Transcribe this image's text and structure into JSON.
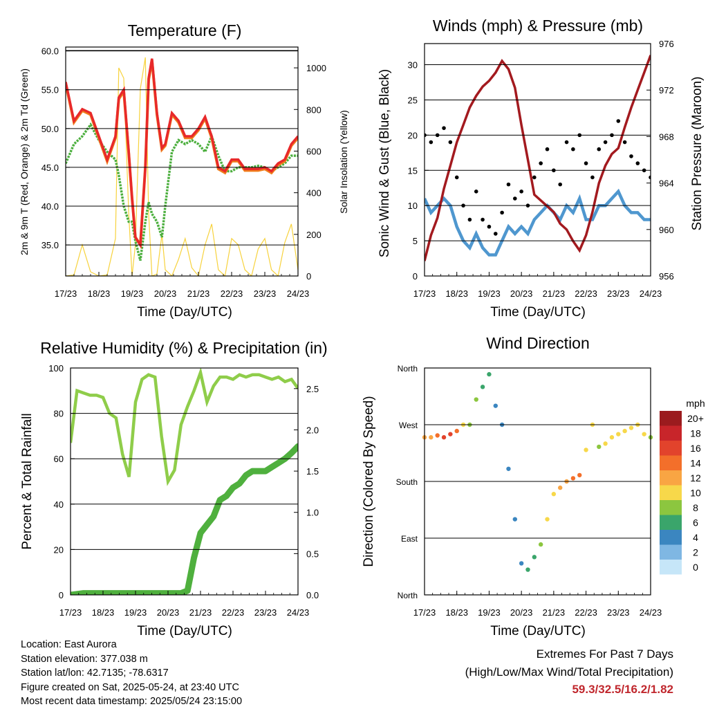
{
  "x_ticks": [
    "17/23",
    "18/23",
    "19/23",
    "20/23",
    "21/23",
    "22/23",
    "23/23",
    "24/23"
  ],
  "colors": {
    "temp_2m": "#e8292a",
    "temp_9m": "#f07d1c",
    "dewpoint": "#4caf3e",
    "solar": "#f7d23c",
    "gust": "#000000",
    "wind": "#4f97cf",
    "pressure": "#a31a1f",
    "rh": "#8fcd4a",
    "precip": "#4fb03e"
  },
  "panels": {
    "temperature": {
      "title": "Temperature (F)",
      "xlabel": "Time (Day/UTC)",
      "ylabel_left": "2m & 9m T (Red, Orange) & 2m Td (Green)",
      "ylabel_right": "Solar Insolation (Yellow)",
      "left_ticks": [
        "35.0",
        "40.0",
        "45.0",
        "50.0",
        "55.0",
        "60.0"
      ],
      "right_ticks": [
        "0",
        "200",
        "400",
        "600",
        "800",
        "1000"
      ]
    },
    "winds": {
      "title": "Winds (mph) & Pressure (mb)",
      "xlabel": "Time (Day/UTC)",
      "ylabel_left": "Sonic Wind & Gust (Blue, Black)",
      "ylabel_right": "Station Pressure (Maroon)",
      "left_ticks": [
        "0",
        "5",
        "10",
        "15",
        "20",
        "25",
        "30"
      ],
      "right_ticks": [
        "956",
        "960",
        "964",
        "968",
        "972",
        "976"
      ]
    },
    "humidity": {
      "title": "Relative Humidity (%) & Precipitation (in)",
      "xlabel": "Time (Day/UTC)",
      "ylabel_left": "Percent & Total Rainfall",
      "left_ticks": [
        "0",
        "20",
        "40",
        "60",
        "80",
        "100"
      ],
      "right_ticks": [
        "0.0",
        "0.5",
        "1.0",
        "1.5",
        "2.0",
        "2.5"
      ]
    },
    "direction": {
      "title": "Wind Direction",
      "xlabel": "Time (Day/UTC)",
      "ylabel_left": "Direction (Colored By Speed)",
      "left_ticks": [
        "North",
        "East",
        "South",
        "West",
        "North"
      ],
      "legend_title": "mph",
      "legend_labels": [
        "20+",
        "18",
        "16",
        "14",
        "12",
        "10",
        "8",
        "6",
        "4",
        "2",
        "0"
      ],
      "legend_colors": [
        "#9b1b1e",
        "#c8252a",
        "#e2432c",
        "#f36f2a",
        "#f9a543",
        "#f7d84a",
        "#8cc63f",
        "#3aa56b",
        "#3b86c0",
        "#7fb7e3",
        "#c6e6f8"
      ]
    }
  },
  "station": {
    "location": "Location: East Aurora",
    "elevation": "Station elevation: 377.038 m",
    "latlon": "Station lat/lon: 42.7135; -78.6317",
    "created": "Figure created on Sat, 2025-05-24, at 23:40 UTC",
    "recent": "Most recent data timestamp: 2025/05/24 23:15:00"
  },
  "extremes": {
    "title": "Extremes For Past 7 Days",
    "subtitle": "(High/Low/Max Wind/Total Precipitation)",
    "values": "59.3/32.5/16.2/1.82"
  },
  "chart_data": [
    {
      "type": "line",
      "title": "Temperature (F)",
      "xlabel": "Time (Day/UTC)",
      "ylabel": "2m & 9m T (Red, Orange) & 2m Td (Green)",
      "y2label": "Solar Insolation (Yellow)",
      "x": [
        17.0,
        17.25,
        17.5,
        17.75,
        18.0,
        18.25,
        18.5,
        18.6,
        18.75,
        18.9,
        19.0,
        19.1,
        19.25,
        19.4,
        19.5,
        19.6,
        19.75,
        19.9,
        20.0,
        20.2,
        20.4,
        20.6,
        20.8,
        21.0,
        21.2,
        21.4,
        21.6,
        21.8,
        22.0,
        22.2,
        22.4,
        22.6,
        22.8,
        23.0,
        23.2,
        23.4,
        23.6,
        23.8,
        24.0
      ],
      "ylim": [
        31,
        60.5
      ],
      "y2lim": [
        0,
        1100
      ],
      "series": [
        {
          "name": "2m T",
          "values": [
            56,
            51,
            52.5,
            52,
            49,
            46,
            49,
            54,
            55,
            47,
            41,
            36,
            35,
            45,
            56.5,
            59,
            52,
            47.5,
            48,
            52,
            51,
            49,
            49,
            50,
            51.5,
            49,
            45,
            44.5,
            46,
            46,
            44.8,
            44.8,
            44.8,
            45,
            44.5,
            45.5,
            46,
            48,
            49
          ]
        },
        {
          "name": "9m T",
          "values": [
            55.8,
            50.8,
            52.3,
            51.8,
            48.8,
            45.8,
            48.8,
            53.8,
            54.8,
            46.8,
            41,
            36,
            35,
            45,
            56.3,
            58.8,
            51.8,
            47.3,
            47.8,
            51.8,
            50.8,
            48.8,
            48.8,
            49.8,
            51.3,
            48.8,
            44.8,
            44.3,
            45.8,
            45.8,
            44.6,
            44.6,
            44.6,
            44.8,
            44.3,
            45.3,
            45.8,
            47.8,
            48.8
          ]
        },
        {
          "name": "2m Td",
          "values": [
            45.5,
            48,
            49,
            50.5,
            48.5,
            47,
            46,
            44,
            40,
            38,
            38,
            35.5,
            33,
            38,
            40.5,
            39,
            38,
            36,
            40,
            47,
            48.5,
            48,
            48.5,
            48,
            47,
            49,
            46.5,
            44.5,
            44.5,
            45,
            45,
            45,
            45.2,
            45,
            44.5,
            45,
            45.5,
            46.5,
            46.5
          ]
        },
        {
          "name": "Solar Insolation",
          "axis": "right",
          "values": [
            0,
            5,
            150,
            20,
            0,
            5,
            180,
            1000,
            950,
            300,
            0,
            150,
            900,
            1050,
            300,
            0,
            10,
            200,
            30,
            0,
            80,
            180,
            40,
            0,
            150,
            250,
            30,
            0,
            180,
            150,
            30,
            0,
            130,
            180,
            30,
            0,
            160,
            250,
            30
          ]
        }
      ]
    },
    {
      "type": "scatter",
      "title": "Winds (mph) & Pressure (mb)",
      "xlabel": "Time (Day/UTC)",
      "ylabel": "Sonic Wind & Gust (Blue, Black)",
      "y2label": "Station Pressure (Maroon)",
      "x": [
        17.0,
        17.2,
        17.4,
        17.6,
        17.8,
        18.0,
        18.2,
        18.4,
        18.6,
        18.8,
        19.0,
        19.2,
        19.4,
        19.6,
        19.8,
        20.0,
        20.2,
        20.4,
        20.6,
        20.8,
        21.0,
        21.2,
        21.4,
        21.6,
        21.8,
        22.0,
        22.2,
        22.4,
        22.6,
        22.8,
        23.0,
        23.2,
        23.4,
        23.6,
        23.8,
        24.0
      ],
      "ylim": [
        0,
        33
      ],
      "y2lim": [
        956,
        976
      ],
      "series": [
        {
          "name": "Gust",
          "values": [
            20,
            19,
            20,
            21,
            19,
            14,
            10,
            8,
            12,
            8,
            7,
            6,
            9,
            13,
            11,
            12,
            10,
            14,
            16,
            18,
            15,
            13,
            19,
            18,
            20,
            16,
            14,
            18,
            19,
            20,
            22,
            19,
            17,
            16,
            15,
            14
          ]
        },
        {
          "name": "Sonic Wind",
          "values": [
            11,
            9,
            10,
            11,
            10,
            7,
            5,
            4,
            6,
            4,
            3,
            3,
            5,
            7,
            6,
            7,
            6,
            8,
            9,
            10,
            9,
            8,
            10,
            9,
            11,
            8,
            8,
            10,
            10,
            11,
            12,
            10,
            9,
            9,
            8,
            8
          ]
        },
        {
          "name": "Station Pressure",
          "axis": "right",
          "values": [
            957.3,
            959.5,
            961,
            963.5,
            965.5,
            967.5,
            969,
            970.5,
            971.5,
            972.3,
            972.8,
            973.5,
            974.5,
            973.8,
            972.2,
            969,
            966,
            963,
            962.5,
            962,
            961.5,
            960.5,
            960,
            959,
            958.2,
            959.5,
            961.5,
            964,
            965.5,
            966.5,
            967,
            968.8,
            970.5,
            972,
            973.5,
            975
          ]
        }
      ]
    },
    {
      "type": "line",
      "title": "Relative Humidity (%) & Precipitation (in)",
      "xlabel": "Time (Day/UTC)",
      "ylabel": "Percent & Total Rainfall",
      "x": [
        17.0,
        17.2,
        17.4,
        17.6,
        17.8,
        18.0,
        18.2,
        18.4,
        18.6,
        18.8,
        19.0,
        19.2,
        19.4,
        19.6,
        19.8,
        20.0,
        20.2,
        20.4,
        20.6,
        20.8,
        21.0,
        21.2,
        21.4,
        21.6,
        21.8,
        22.0,
        22.2,
        22.4,
        22.6,
        22.8,
        23.0,
        23.2,
        23.4,
        23.6,
        23.8,
        24.0
      ],
      "ylim": [
        0,
        100
      ],
      "y2lim": [
        0,
        2.75
      ],
      "series": [
        {
          "name": "Relative Humidity",
          "values": [
            67,
            90,
            89,
            88,
            88,
            87,
            80,
            78,
            62,
            52,
            85,
            95,
            97,
            96,
            70,
            50,
            55,
            75,
            83,
            90,
            98,
            85,
            92,
            96,
            96,
            95,
            97,
            96,
            97,
            97,
            96,
            95,
            96,
            94,
            95,
            91
          ]
        },
        {
          "name": "Total Precipitation",
          "axis": "right",
          "values": [
            0,
            0.01,
            0.02,
            0.02,
            0.02,
            0.02,
            0.02,
            0.02,
            0.02,
            0.02,
            0.02,
            0.02,
            0.02,
            0.02,
            0.02,
            0.02,
            0.02,
            0.02,
            0.05,
            0.45,
            0.75,
            0.85,
            0.95,
            1.15,
            1.2,
            1.3,
            1.35,
            1.45,
            1.5,
            1.5,
            1.5,
            1.55,
            1.6,
            1.65,
            1.72,
            1.8
          ]
        }
      ]
    },
    {
      "type": "scatter",
      "title": "Wind Direction",
      "xlabel": "Time (Day/UTC)",
      "ylabel": "Direction (Colored By Speed)",
      "ylim": [
        0,
        360
      ],
      "x": [
        17.0,
        17.2,
        17.4,
        17.6,
        17.8,
        18.0,
        18.2,
        18.4,
        18.6,
        18.8,
        19.0,
        19.2,
        19.4,
        19.6,
        19.8,
        20.0,
        20.2,
        20.4,
        20.6,
        20.8,
        21.0,
        21.2,
        21.4,
        21.6,
        21.8,
        22.0,
        22.2,
        22.4,
        22.6,
        22.8,
        23.0,
        23.2,
        23.4,
        23.6,
        23.8,
        24.0
      ],
      "values": [
        250,
        250,
        253,
        250,
        255,
        260,
        270,
        270,
        310,
        330,
        350,
        300,
        270,
        200,
        120,
        50,
        40,
        60,
        80,
        120,
        160,
        170,
        180,
        185,
        190,
        230,
        270,
        235,
        240,
        250,
        255,
        260,
        265,
        270,
        255,
        250
      ],
      "speed": [
        12,
        12,
        14,
        15,
        16,
        14,
        9,
        8,
        8,
        6,
        5,
        4,
        4,
        3,
        3,
        4,
        5,
        6,
        7,
        9,
        10,
        11,
        12,
        13,
        13,
        10,
        9,
        8,
        9,
        10,
        9,
        9,
        10,
        9,
        9,
        8
      ]
    }
  ]
}
